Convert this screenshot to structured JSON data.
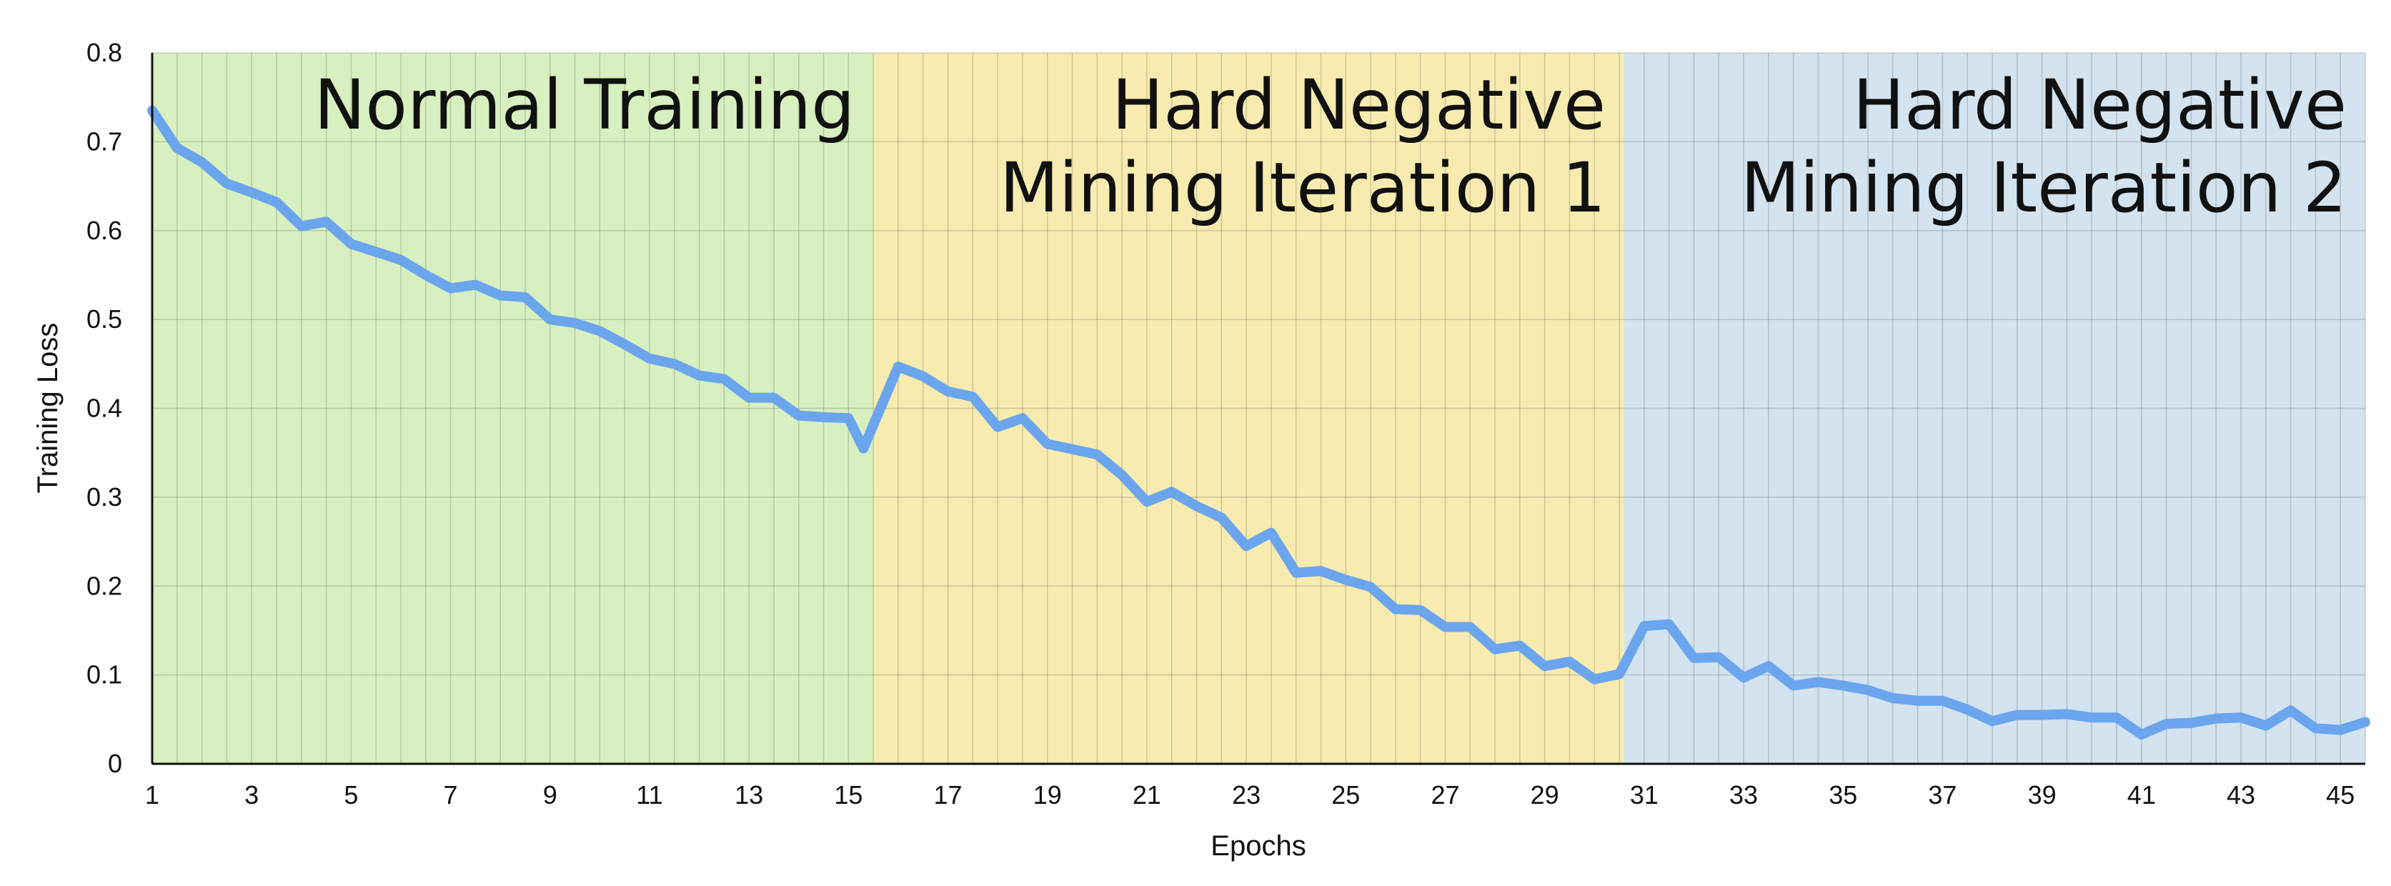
{
  "chart_data": {
    "type": "line",
    "title": "",
    "xlabel": "Epochs",
    "ylabel": "Training Loss",
    "xlim": [
      1,
      45.5
    ],
    "ylim": [
      0,
      0.8
    ],
    "x_ticks": [
      1,
      3,
      5,
      7,
      9,
      11,
      13,
      15,
      17,
      19,
      21,
      23,
      25,
      27,
      29,
      31,
      33,
      35,
      37,
      39,
      41,
      43,
      45
    ],
    "y_ticks": [
      0,
      0.1,
      0.2,
      0.3,
      0.4,
      0.5,
      0.6,
      0.7,
      0.8
    ],
    "y_tick_labels": [
      "0",
      "0.1",
      "0.2",
      "0.3",
      "0.4",
      "0.5",
      "0.6",
      "0.7",
      "0.8"
    ],
    "grid": true,
    "line_color": "#6aa5ee",
    "regions": [
      {
        "label_lines": [
          "Normal Training"
        ],
        "x_start": 1,
        "x_end": 15.5,
        "color": "#d8f0c0"
      },
      {
        "label_lines": [
          "Hard Negative",
          "Mining Iteration 1"
        ],
        "x_start": 15.5,
        "x_end": 30.6,
        "color": "#f7ebb0"
      },
      {
        "label_lines": [
          "Hard Negative",
          "Mining Iteration 2"
        ],
        "x_start": 30.6,
        "x_end": 45.5,
        "color": "#d3e3f0"
      }
    ],
    "series": [
      {
        "x": [
          1,
          1.5,
          2,
          2.5,
          3,
          3.5,
          4,
          4.5,
          5,
          5.5,
          6,
          6.5,
          7,
          7.5,
          8,
          8.5,
          9,
          9.5,
          10,
          10.5,
          11,
          11.5,
          12,
          12.5,
          13,
          13.5,
          14,
          14.5,
          15,
          15.3,
          16,
          16.5,
          17,
          17.5,
          18,
          18.5,
          19,
          19.5,
          20,
          20.5,
          21,
          21.5,
          22,
          22.5,
          23,
          23.5,
          24,
          24.5,
          25,
          25.5,
          26,
          26.5,
          27,
          27.5,
          28,
          28.5,
          29,
          29.5,
          30,
          30.5,
          31,
          31.5,
          32,
          32.5,
          33,
          33.5,
          34,
          34.5,
          35,
          35.5,
          36,
          36.5,
          37,
          37.5,
          38,
          38.5,
          39,
          39.5,
          40,
          40.5,
          41,
          41.5,
          42,
          42.5,
          43,
          43.5,
          44,
          44.5,
          45,
          45.5
        ],
        "y": [
          0.735,
          0.693,
          0.677,
          0.653,
          0.643,
          0.632,
          0.605,
          0.61,
          0.585,
          0.576,
          0.567,
          0.55,
          0.535,
          0.539,
          0.527,
          0.525,
          0.5,
          0.496,
          0.487,
          0.472,
          0.456,
          0.45,
          0.437,
          0.433,
          0.412,
          0.412,
          0.392,
          0.39,
          0.389,
          0.355,
          0.447,
          0.436,
          0.419,
          0.413,
          0.379,
          0.389,
          0.36,
          0.354,
          0.348,
          0.325,
          0.295,
          0.306,
          0.29,
          0.277,
          0.245,
          0.26,
          0.215,
          0.217,
          0.207,
          0.199,
          0.174,
          0.173,
          0.154,
          0.154,
          0.129,
          0.133,
          0.11,
          0.115,
          0.095,
          0.101,
          0.155,
          0.157,
          0.119,
          0.12,
          0.097,
          0.11,
          0.088,
          0.092,
          0.088,
          0.083,
          0.074,
          0.071,
          0.071,
          0.061,
          0.048,
          0.055,
          0.055,
          0.056,
          0.052,
          0.052,
          0.033,
          0.045,
          0.046,
          0.051,
          0.052,
          0.043,
          0.06,
          0.04,
          0.038,
          0.047
        ]
      }
    ]
  }
}
